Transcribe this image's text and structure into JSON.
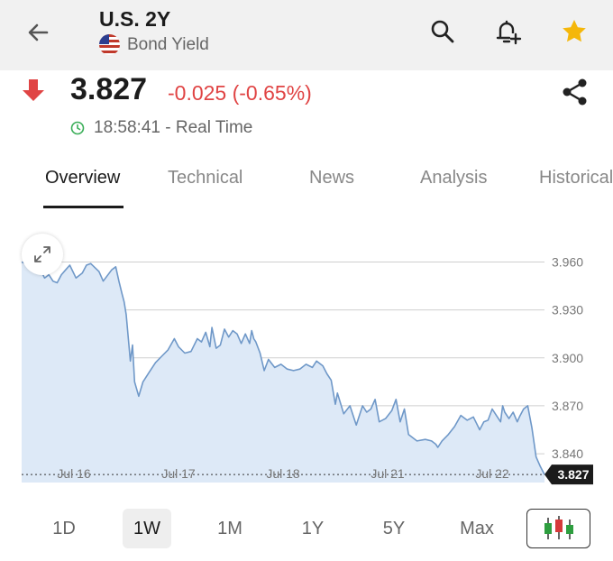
{
  "header": {
    "title": "U.S. 2Y",
    "subtitle": "Bond Yield",
    "icons": [
      "back-arrow-icon",
      "search-icon",
      "bell-add-icon",
      "star-icon"
    ],
    "star_color": "#f5b70a"
  },
  "quote": {
    "price": "3.827",
    "change": "-0.025 (-0.65%)",
    "time": "18:58:41 - Real Time",
    "down_color": "#e04444",
    "live_color": "#3aae58"
  },
  "tabs": [
    {
      "label": "Overview",
      "active": true
    },
    {
      "label": "Technical",
      "active": false
    },
    {
      "label": "News",
      "active": false
    },
    {
      "label": "Analysis",
      "active": false
    },
    {
      "label": "Historical",
      "active": false
    }
  ],
  "chart_data": {
    "type": "area",
    "title": "",
    "xlabel": "",
    "ylabel": "",
    "ylim": [
      3.822,
      3.98
    ],
    "yticks": [
      3.96,
      3.93,
      3.9,
      3.87,
      3.84
    ],
    "ytick_labels": [
      "3.960",
      "3.930",
      "3.900",
      "3.870",
      "3.840"
    ],
    "x_tick_labels": [
      "Jul 16",
      "Jul 17",
      "Jul 18",
      "Jul 21",
      "Jul 22"
    ],
    "x_tick_pos": [
      0.5,
      1.5,
      2.5,
      3.5,
      4.5
    ],
    "last_value": 3.827,
    "last_label": "3.827",
    "grid": true,
    "line_color": "#6f98c8",
    "fill_color": "#dde9f7",
    "series": [
      {
        "x": [
          0,
          0.1,
          0.14,
          0.18,
          0.22,
          0.26,
          0.3,
          0.34,
          0.38,
          0.42,
          0.46,
          0.52,
          0.58,
          0.62,
          0.66,
          0.74,
          0.78,
          0.86,
          0.9,
          0.93,
          0.96,
          0.98,
          1.0,
          1.04,
          1.06,
          1.08,
          1.12,
          1.16,
          1.22,
          1.28,
          1.34,
          1.4,
          1.46,
          1.5,
          1.56,
          1.62,
          1.68,
          1.72,
          1.76,
          1.8,
          1.82,
          1.86,
          1.9,
          1.94,
          1.98,
          2.02,
          2.06,
          2.1,
          2.14,
          2.18,
          2.2,
          2.22,
          2.24,
          2.28,
          2.32,
          2.36,
          2.42,
          2.48,
          2.54,
          2.6,
          2.66,
          2.72,
          2.78,
          2.82,
          2.88,
          2.92,
          2.96,
          3.0,
          3.02,
          3.08,
          3.14,
          3.2,
          3.26,
          3.3,
          3.34,
          3.38,
          3.42,
          3.48,
          3.54,
          3.58,
          3.62,
          3.66,
          3.7,
          3.78,
          3.86,
          3.92,
          3.96,
          3.98,
          4.02,
          4.08,
          4.14,
          4.2,
          4.26,
          4.32,
          4.38,
          4.42,
          4.46,
          4.5,
          4.54,
          4.58,
          4.6,
          4.62,
          4.66,
          4.7,
          4.74,
          4.76,
          4.8,
          4.84,
          4.88,
          4.92,
          4.96,
          5.0
        ],
        "y": [
          3.96,
          3.957,
          3.963,
          3.955,
          3.95,
          3.952,
          3.948,
          3.947,
          3.952,
          3.955,
          3.958,
          3.95,
          3.953,
          3.958,
          3.959,
          3.954,
          3.948,
          3.955,
          3.957,
          3.948,
          3.94,
          3.935,
          3.927,
          3.898,
          3.908,
          3.885,
          3.876,
          3.885,
          3.891,
          3.897,
          3.901,
          3.905,
          3.912,
          3.907,
          3.903,
          3.904,
          3.912,
          3.91,
          3.916,
          3.907,
          3.919,
          3.906,
          3.908,
          3.918,
          3.913,
          3.917,
          3.915,
          3.909,
          3.915,
          3.909,
          3.917,
          3.912,
          3.91,
          3.903,
          3.892,
          3.899,
          3.894,
          3.896,
          3.893,
          3.892,
          3.893,
          3.896,
          3.894,
          3.898,
          3.895,
          3.89,
          3.886,
          3.871,
          3.878,
          3.865,
          3.87,
          3.858,
          3.87,
          3.866,
          3.868,
          3.874,
          3.86,
          3.862,
          3.867,
          3.874,
          3.86,
          3.868,
          3.852,
          3.848,
          3.849,
          3.848,
          3.846,
          3.844,
          3.848,
          3.852,
          3.857,
          3.864,
          3.861,
          3.863,
          3.855,
          3.86,
          3.861,
          3.868,
          3.864,
          3.86,
          3.87,
          3.866,
          3.862,
          3.866,
          3.86,
          3.863,
          3.868,
          3.87,
          3.856,
          3.838,
          3.832,
          3.827
        ]
      }
    ]
  },
  "ranges": [
    {
      "label": "1D",
      "active": false
    },
    {
      "label": "1W",
      "active": true
    },
    {
      "label": "1M",
      "active": false
    },
    {
      "label": "1Y",
      "active": false
    },
    {
      "label": "5Y",
      "active": false
    },
    {
      "label": "Max",
      "active": false
    }
  ],
  "candle_button": {
    "icon": "candlestick-chart-icon"
  },
  "share": {
    "icon": "share-icon"
  },
  "expand": {
    "icon": "expand-icon"
  }
}
